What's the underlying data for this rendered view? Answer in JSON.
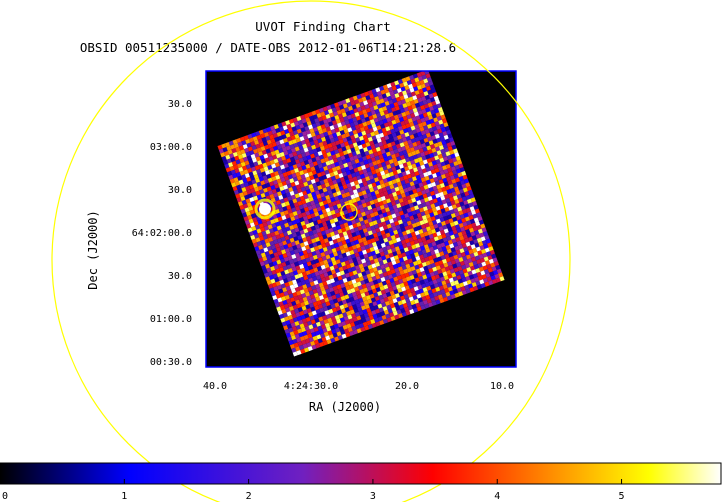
{
  "chart_data": {
    "type": "heatmap",
    "title": "UVOT Finding Chart",
    "subtitle": "OBSID 00511235000 / DATE-OBS 2012-01-06T14:21:28.6",
    "xlabel": "RA (J2000)",
    "ylabel": "Dec (J2000)",
    "x_ticks": [
      "40.0",
      "4:24:30.0",
      "20.0",
      "10.0"
    ],
    "y_ticks": [
      "30.0",
      "03:00.0",
      "30.0",
      "64:02:00.0",
      "30.0",
      "01:00.0",
      "00:30.0"
    ],
    "colorbar": {
      "ticks": [
        "0",
        "1",
        "2",
        "3",
        "4",
        "5"
      ],
      "values": [
        0,
        1,
        2,
        3,
        4,
        5
      ],
      "range": [
        0,
        5.8
      ]
    },
    "markers": [
      {
        "kind": "source-circle",
        "color": "#ffff00"
      },
      {
        "kind": "field-of-view-circle",
        "color": "#ffff00"
      }
    ]
  },
  "colors": {
    "background": "#000000",
    "frame": "#0000ff",
    "circle": "#ffff00"
  }
}
